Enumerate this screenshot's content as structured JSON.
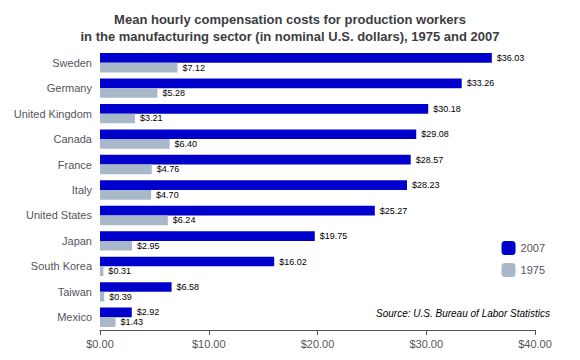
{
  "chart_data": {
    "type": "bar",
    "orientation": "horizontal",
    "title": "Mean hourly compensation costs for production workers\nin the manufacturing sector (in nominal U.S. dollars), 1975 and 2007",
    "categories": [
      "Sweden",
      "Germany",
      "United Kingdom",
      "Canada",
      "France",
      "Italy",
      "United States",
      "Japan",
      "South Korea",
      "Taiwan",
      "Mexico"
    ],
    "series": [
      {
        "name": "2007",
        "color": "#0000CC",
        "values": [
          36.03,
          33.26,
          30.18,
          29.08,
          28.57,
          28.23,
          25.27,
          19.75,
          16.02,
          6.58,
          2.92
        ],
        "value_labels": [
          "$36.03",
          "$33.26",
          "$30.18",
          "$29.08",
          "$28.57",
          "$28.23",
          "$25.27",
          "$19.75",
          "$16.02",
          "$6.58",
          "$2.92"
        ]
      },
      {
        "name": "1975",
        "color": "#A9B8C8",
        "values": [
          7.12,
          5.28,
          3.21,
          6.4,
          4.76,
          4.7,
          6.24,
          2.95,
          0.31,
          0.39,
          1.43
        ],
        "value_labels": [
          "$7.12",
          "$5.28",
          "$3.21",
          "$6.40",
          "$4.76",
          "$4.70",
          "$6.24",
          "$2.95",
          "$0.31",
          "$0.39",
          "$1.43"
        ]
      }
    ],
    "xlim": [
      0,
      40
    ],
    "xticks": [
      {
        "value": 0,
        "label": "$0.00"
      },
      {
        "value": 10,
        "label": "$10.00"
      },
      {
        "value": 20,
        "label": "$20.00"
      },
      {
        "value": 30,
        "label": "$30.00"
      },
      {
        "value": 40,
        "label": "$40.00"
      }
    ],
    "data_labels": true,
    "grid": false,
    "legend": "lower right",
    "annotation": "Source: U.S. Bureau of Labor Statistics"
  }
}
